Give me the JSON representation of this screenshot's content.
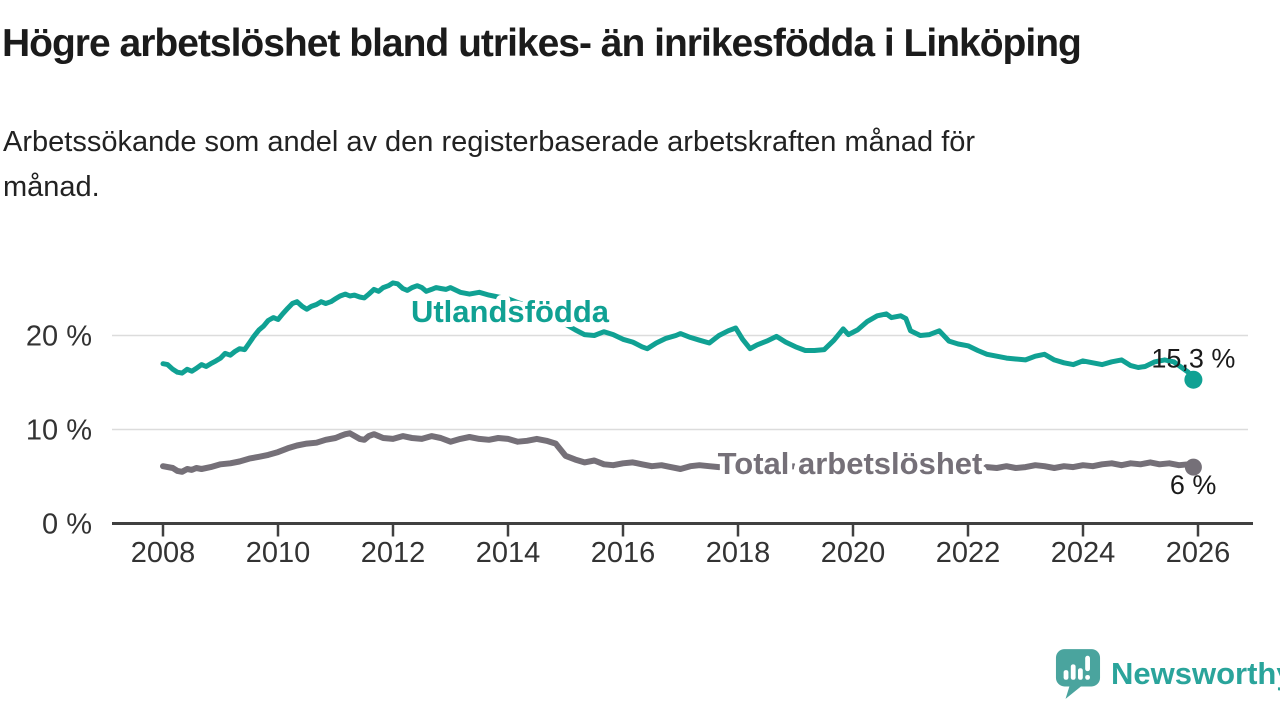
{
  "title": "Högre arbetslöshet bland utrikes- än inrikesfödda i Linköping",
  "subtitle_lines": [
    "Arbetssökande som andel av den registerbaserade arbetskraften månad för",
    "månad."
  ],
  "branding": {
    "name": "Newsworthy",
    "icon": "bar-chart-speech-bubble-icon",
    "icon_color": "#4AA49E",
    "text_color": "#2AA49B"
  },
  "chart_data": {
    "type": "line",
    "title": "Högre arbetslöshet bland utrikes- än inrikesfödda i Linköping",
    "subtitle": "Arbetssökande som andel av den registerbaserade arbetskraften månad för månad.",
    "xlabel": "",
    "ylabel": "",
    "unit": "%",
    "grid": "horizontal",
    "grid_color": "#DCDCDC",
    "axis_color": "#404040",
    "tick_text_color": "#333333",
    "ylim": [
      0,
      27
    ],
    "xlim_years": [
      2007.9,
      2026.5
    ],
    "x_axis": {
      "ticks": [
        2008,
        2010,
        2012,
        2014,
        2016,
        2018,
        2020,
        2022,
        2024,
        2026
      ]
    },
    "y_axis": {
      "ticks": [
        {
          "value": 0,
          "label": "0 %"
        },
        {
          "value": 10,
          "label": "10 %"
        },
        {
          "value": 20,
          "label": "20 %"
        }
      ]
    },
    "series": [
      {
        "name": "Utlandsfödda",
        "color": "#10A193",
        "end_value": 15.3,
        "end_label": "15,3 %",
        "points": [
          [
            2008.0,
            17.0
          ],
          [
            2008.08,
            16.9
          ],
          [
            2008.17,
            16.4
          ],
          [
            2008.25,
            16.1
          ],
          [
            2008.33,
            16.0
          ],
          [
            2008.42,
            16.4
          ],
          [
            2008.5,
            16.2
          ],
          [
            2008.58,
            16.5
          ],
          [
            2008.67,
            16.9
          ],
          [
            2008.75,
            16.7
          ],
          [
            2008.83,
            17.0
          ],
          [
            2008.92,
            17.3
          ],
          [
            2009.0,
            17.6
          ],
          [
            2009.08,
            18.1
          ],
          [
            2009.17,
            17.9
          ],
          [
            2009.25,
            18.3
          ],
          [
            2009.33,
            18.6
          ],
          [
            2009.42,
            18.5
          ],
          [
            2009.5,
            19.2
          ],
          [
            2009.58,
            19.9
          ],
          [
            2009.67,
            20.6
          ],
          [
            2009.75,
            21.0
          ],
          [
            2009.83,
            21.6
          ],
          [
            2009.92,
            21.9
          ],
          [
            2010.0,
            21.7
          ],
          [
            2010.08,
            22.3
          ],
          [
            2010.17,
            22.9
          ],
          [
            2010.25,
            23.4
          ],
          [
            2010.33,
            23.6
          ],
          [
            2010.42,
            23.1
          ],
          [
            2010.5,
            22.8
          ],
          [
            2010.58,
            23.1
          ],
          [
            2010.67,
            23.3
          ],
          [
            2010.75,
            23.6
          ],
          [
            2010.83,
            23.4
          ],
          [
            2010.92,
            23.6
          ],
          [
            2011.0,
            23.9
          ],
          [
            2011.08,
            24.2
          ],
          [
            2011.17,
            24.4
          ],
          [
            2011.25,
            24.2
          ],
          [
            2011.33,
            24.3
          ],
          [
            2011.42,
            24.1
          ],
          [
            2011.5,
            24.0
          ],
          [
            2011.58,
            24.4
          ],
          [
            2011.67,
            24.9
          ],
          [
            2011.75,
            24.7
          ],
          [
            2011.83,
            25.1
          ],
          [
            2011.92,
            25.3
          ],
          [
            2012.0,
            25.6
          ],
          [
            2012.08,
            25.5
          ],
          [
            2012.17,
            25.0
          ],
          [
            2012.25,
            24.8
          ],
          [
            2012.33,
            25.1
          ],
          [
            2012.42,
            25.3
          ],
          [
            2012.5,
            25.1
          ],
          [
            2012.58,
            24.7
          ],
          [
            2012.67,
            24.9
          ],
          [
            2012.75,
            25.1
          ],
          [
            2012.83,
            25.0
          ],
          [
            2012.92,
            24.9
          ],
          [
            2013.0,
            25.1
          ],
          [
            2013.17,
            24.6
          ],
          [
            2013.33,
            24.4
          ],
          [
            2013.5,
            24.6
          ],
          [
            2013.67,
            24.3
          ],
          [
            2013.83,
            24.1
          ],
          [
            2014.0,
            23.9
          ],
          [
            2014.17,
            23.5
          ],
          [
            2014.33,
            23.2
          ],
          [
            2014.5,
            22.8
          ],
          [
            2014.67,
            22.3
          ],
          [
            2014.83,
            21.6
          ],
          [
            2015.0,
            21.2
          ],
          [
            2015.17,
            20.6
          ],
          [
            2015.33,
            20.1
          ],
          [
            2015.5,
            20.0
          ],
          [
            2015.67,
            20.4
          ],
          [
            2015.83,
            20.1
          ],
          [
            2016.0,
            19.6
          ],
          [
            2016.17,
            19.3
          ],
          [
            2016.33,
            18.8
          ],
          [
            2016.42,
            18.6
          ],
          [
            2016.58,
            19.2
          ],
          [
            2016.75,
            19.7
          ],
          [
            2016.92,
            20.0
          ],
          [
            2017.0,
            20.2
          ],
          [
            2017.17,
            19.8
          ],
          [
            2017.33,
            19.5
          ],
          [
            2017.5,
            19.2
          ],
          [
            2017.67,
            20.0
          ],
          [
            2017.83,
            20.5
          ],
          [
            2017.96,
            20.8
          ],
          [
            2018.08,
            19.6
          ],
          [
            2018.21,
            18.6
          ],
          [
            2018.33,
            19.0
          ],
          [
            2018.5,
            19.4
          ],
          [
            2018.67,
            19.9
          ],
          [
            2018.83,
            19.3
          ],
          [
            2019.0,
            18.8
          ],
          [
            2019.17,
            18.4
          ],
          [
            2019.33,
            18.4
          ],
          [
            2019.5,
            18.5
          ],
          [
            2019.67,
            19.5
          ],
          [
            2019.83,
            20.7
          ],
          [
            2019.92,
            20.1
          ],
          [
            2020.08,
            20.6
          ],
          [
            2020.25,
            21.5
          ],
          [
            2020.42,
            22.1
          ],
          [
            2020.58,
            22.3
          ],
          [
            2020.67,
            21.9
          ],
          [
            2020.83,
            22.1
          ],
          [
            2020.92,
            21.8
          ],
          [
            2021.0,
            20.5
          ],
          [
            2021.17,
            20.0
          ],
          [
            2021.33,
            20.1
          ],
          [
            2021.5,
            20.5
          ],
          [
            2021.67,
            19.4
          ],
          [
            2021.83,
            19.1
          ],
          [
            2022.0,
            18.9
          ],
          [
            2022.17,
            18.4
          ],
          [
            2022.33,
            18.0
          ],
          [
            2022.5,
            17.8
          ],
          [
            2022.67,
            17.6
          ],
          [
            2022.83,
            17.5
          ],
          [
            2023.0,
            17.4
          ],
          [
            2023.17,
            17.8
          ],
          [
            2023.33,
            18.0
          ],
          [
            2023.5,
            17.4
          ],
          [
            2023.67,
            17.1
          ],
          [
            2023.83,
            16.9
          ],
          [
            2024.0,
            17.3
          ],
          [
            2024.17,
            17.1
          ],
          [
            2024.33,
            16.9
          ],
          [
            2024.5,
            17.2
          ],
          [
            2024.67,
            17.4
          ],
          [
            2024.83,
            16.8
          ],
          [
            2024.96,
            16.6
          ],
          [
            2025.08,
            16.7
          ],
          [
            2025.25,
            17.2
          ],
          [
            2025.42,
            17.4
          ],
          [
            2025.58,
            17.2
          ],
          [
            2025.67,
            16.8
          ],
          [
            2025.83,
            16.1
          ],
          [
            2025.92,
            15.3
          ]
        ]
      },
      {
        "name": "Total arbetslöshet",
        "color": "#757078",
        "end_value": 6.0,
        "end_label": "6 %",
        "points": [
          [
            2008.0,
            6.1
          ],
          [
            2008.17,
            5.9
          ],
          [
            2008.25,
            5.6
          ],
          [
            2008.33,
            5.5
          ],
          [
            2008.42,
            5.8
          ],
          [
            2008.5,
            5.7
          ],
          [
            2008.58,
            5.9
          ],
          [
            2008.67,
            5.8
          ],
          [
            2008.83,
            6.0
          ],
          [
            2009.0,
            6.3
          ],
          [
            2009.17,
            6.4
          ],
          [
            2009.33,
            6.6
          ],
          [
            2009.5,
            6.9
          ],
          [
            2009.67,
            7.1
          ],
          [
            2009.83,
            7.3
          ],
          [
            2010.0,
            7.6
          ],
          [
            2010.17,
            8.0
          ],
          [
            2010.33,
            8.3
          ],
          [
            2010.5,
            8.5
          ],
          [
            2010.67,
            8.6
          ],
          [
            2010.83,
            8.9
          ],
          [
            2011.0,
            9.1
          ],
          [
            2011.08,
            9.3
          ],
          [
            2011.17,
            9.5
          ],
          [
            2011.25,
            9.6
          ],
          [
            2011.42,
            9.0
          ],
          [
            2011.5,
            8.9
          ],
          [
            2011.58,
            9.3
          ],
          [
            2011.67,
            9.5
          ],
          [
            2011.83,
            9.1
          ],
          [
            2012.0,
            9.0
          ],
          [
            2012.17,
            9.3
          ],
          [
            2012.33,
            9.1
          ],
          [
            2012.5,
            9.0
          ],
          [
            2012.67,
            9.3
          ],
          [
            2012.83,
            9.1
          ],
          [
            2013.0,
            8.7
          ],
          [
            2013.17,
            9.0
          ],
          [
            2013.33,
            9.2
          ],
          [
            2013.5,
            9.0
          ],
          [
            2013.67,
            8.9
          ],
          [
            2013.83,
            9.1
          ],
          [
            2014.0,
            9.0
          ],
          [
            2014.17,
            8.7
          ],
          [
            2014.33,
            8.8
          ],
          [
            2014.5,
            9.0
          ],
          [
            2014.67,
            8.8
          ],
          [
            2014.83,
            8.5
          ],
          [
            2015.0,
            7.2
          ],
          [
            2015.17,
            6.8
          ],
          [
            2015.33,
            6.5
          ],
          [
            2015.5,
            6.7
          ],
          [
            2015.67,
            6.3
          ],
          [
            2015.83,
            6.2
          ],
          [
            2016.0,
            6.4
          ],
          [
            2016.17,
            6.5
          ],
          [
            2016.33,
            6.3
          ],
          [
            2016.5,
            6.1
          ],
          [
            2016.67,
            6.2
          ],
          [
            2016.83,
            6.0
          ],
          [
            2017.0,
            5.8
          ],
          [
            2017.17,
            6.1
          ],
          [
            2017.33,
            6.2
          ],
          [
            2017.5,
            6.1
          ],
          [
            2017.67,
            6.0
          ],
          [
            2018.0,
            6.1
          ],
          [
            2018.33,
            6.2
          ],
          [
            2018.67,
            6.0
          ],
          [
            2019.0,
            6.1
          ],
          [
            2019.33,
            6.3
          ],
          [
            2019.67,
            6.2
          ],
          [
            2020.0,
            6.3
          ],
          [
            2020.33,
            6.5
          ],
          [
            2020.67,
            6.4
          ],
          [
            2021.0,
            6.3
          ],
          [
            2021.33,
            6.2
          ],
          [
            2021.67,
            6.1
          ],
          [
            2022.0,
            6.0
          ],
          [
            2022.33,
            6.0
          ],
          [
            2022.5,
            5.9
          ],
          [
            2022.67,
            6.1
          ],
          [
            2022.83,
            5.9
          ],
          [
            2023.0,
            6.0
          ],
          [
            2023.17,
            6.2
          ],
          [
            2023.33,
            6.1
          ],
          [
            2023.5,
            5.9
          ],
          [
            2023.67,
            6.1
          ],
          [
            2023.83,
            6.0
          ],
          [
            2024.0,
            6.2
          ],
          [
            2024.17,
            6.1
          ],
          [
            2024.33,
            6.3
          ],
          [
            2024.5,
            6.4
          ],
          [
            2024.67,
            6.2
          ],
          [
            2024.83,
            6.4
          ],
          [
            2025.0,
            6.3
          ],
          [
            2025.17,
            6.5
          ],
          [
            2025.33,
            6.3
          ],
          [
            2025.5,
            6.4
          ],
          [
            2025.67,
            6.2
          ],
          [
            2025.83,
            6.3
          ],
          [
            2025.92,
            6.0
          ]
        ]
      }
    ]
  }
}
